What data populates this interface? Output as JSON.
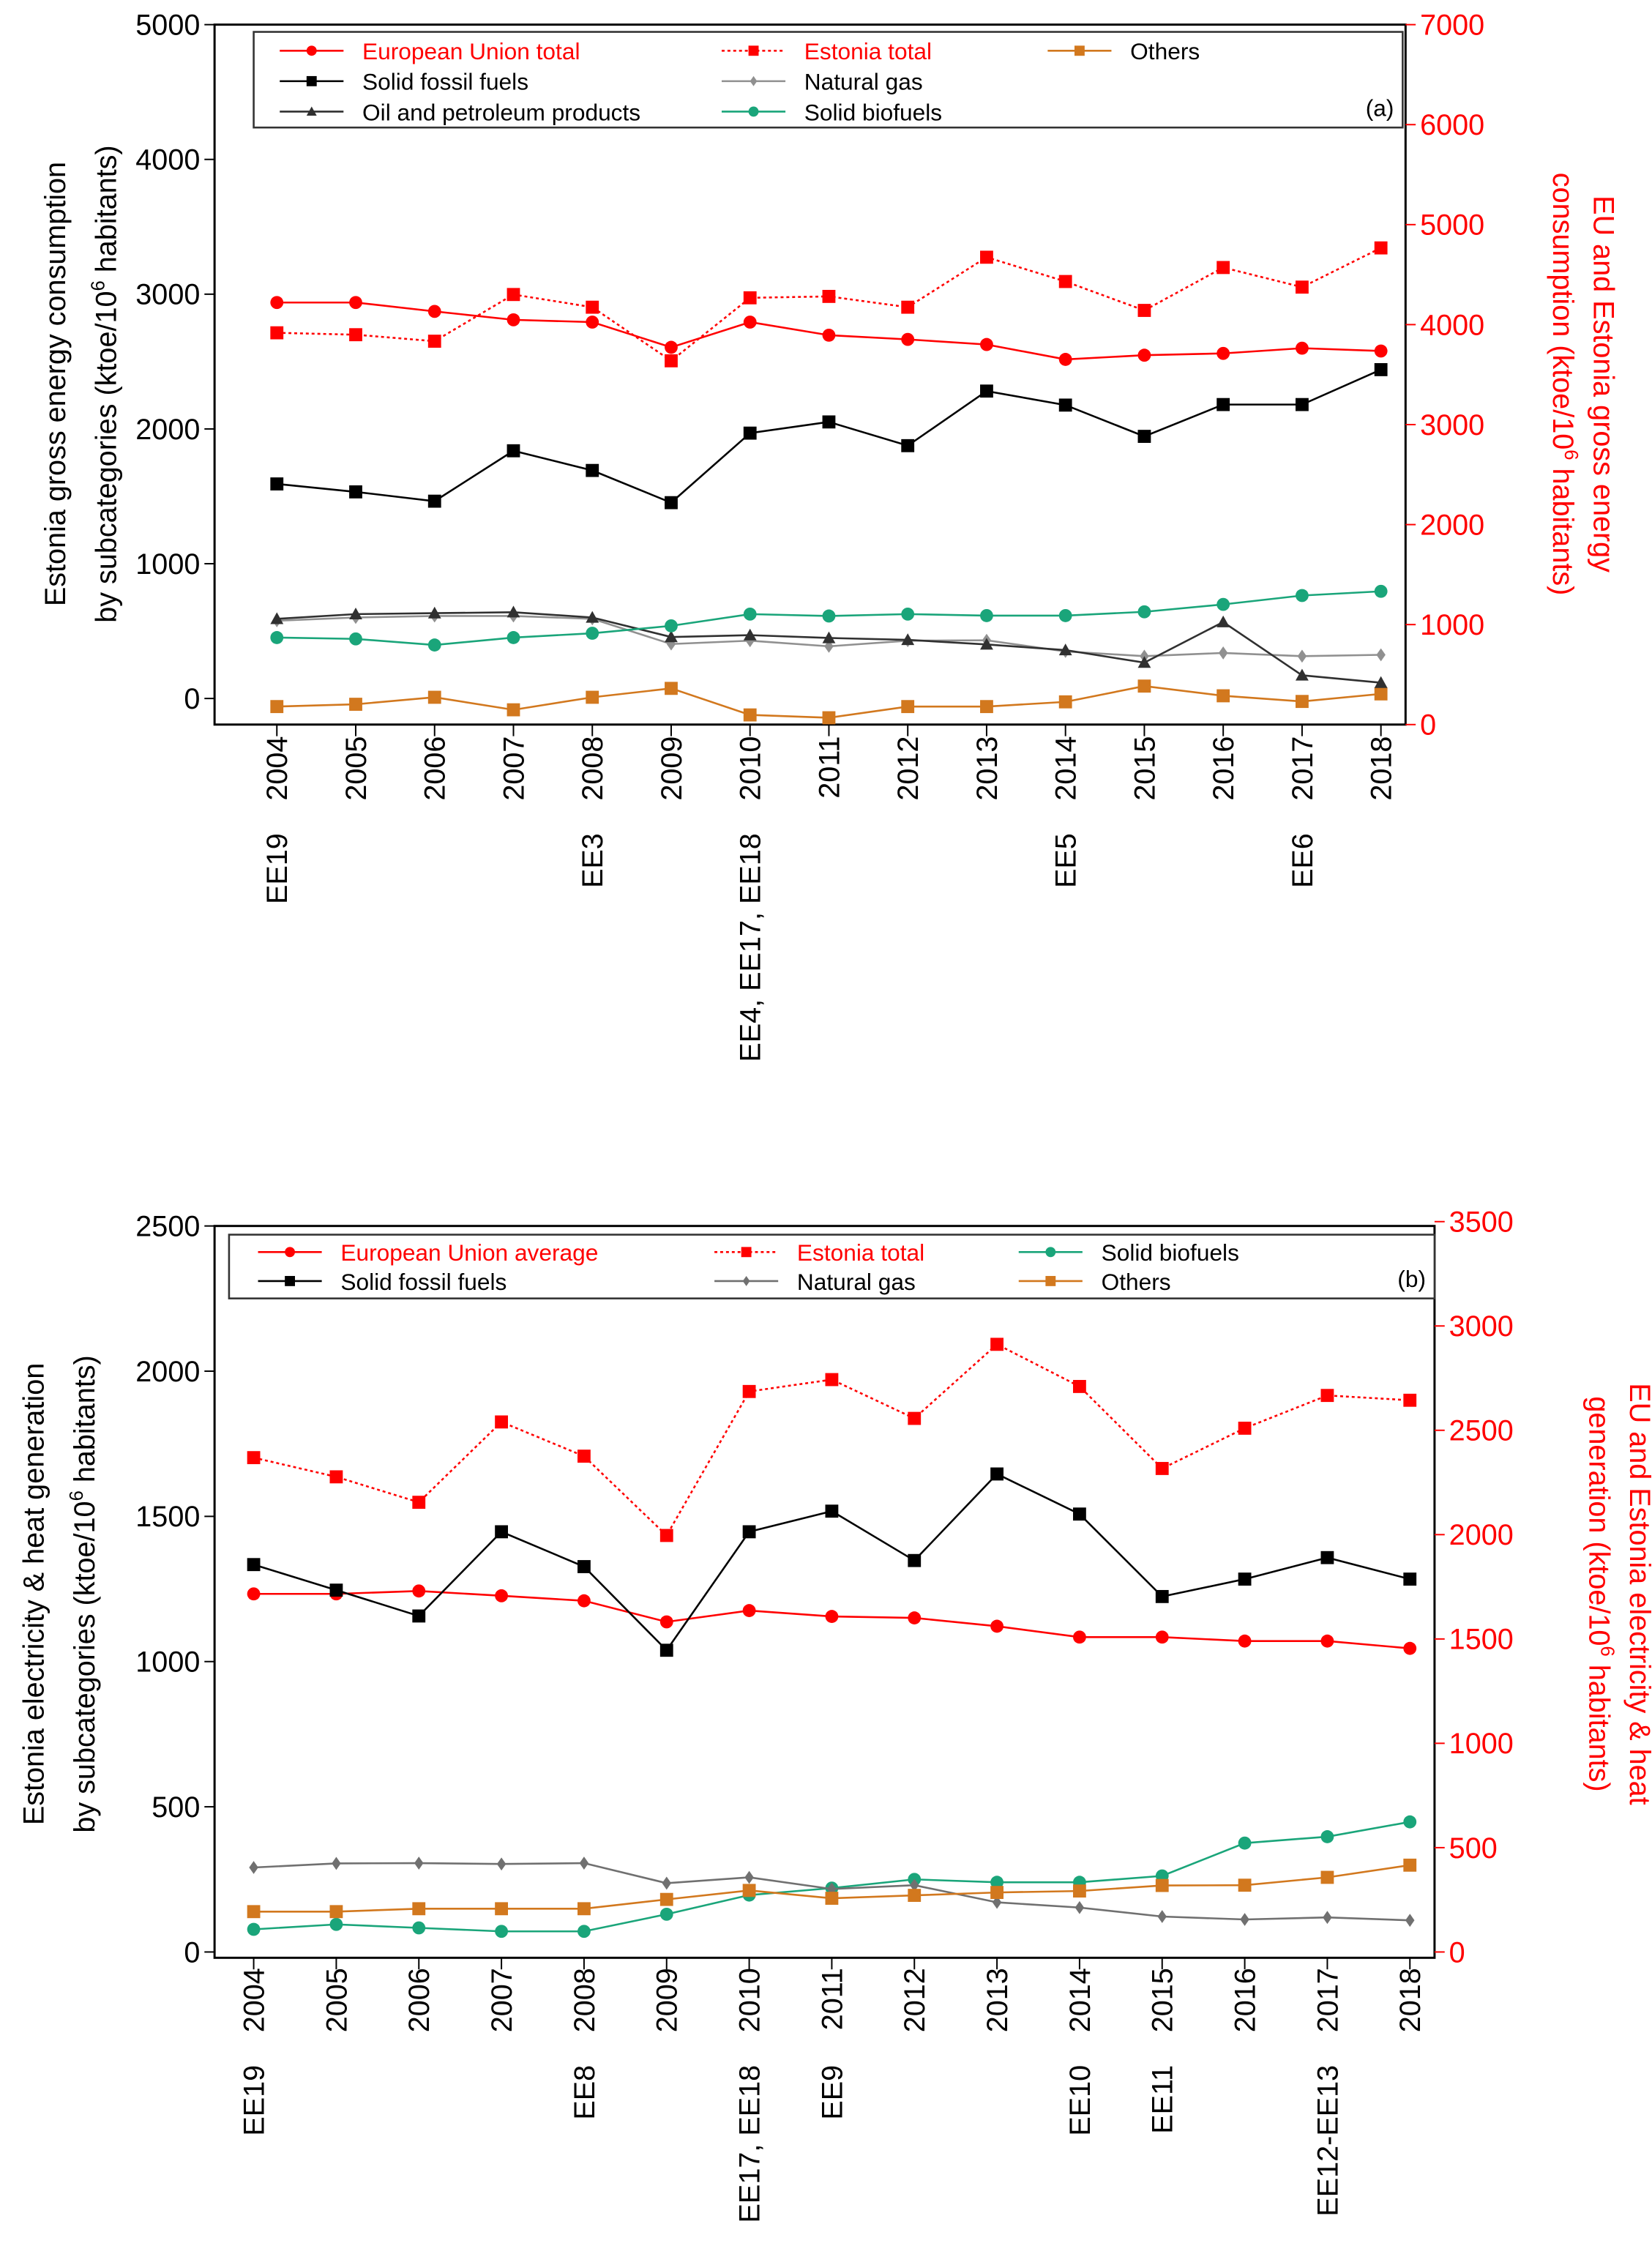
{
  "colors": {
    "eu": "#ff0000",
    "estonia": "#ff0000",
    "solid_fossil": "#000000",
    "natural_gas": "#808080",
    "oil": "#303030",
    "biofuels": "#1aa57a",
    "others": "#d2781e"
  },
  "chart_data": [
    {
      "type": "line",
      "panel_label": "(a)",
      "x": [
        2004,
        2005,
        2006,
        2007,
        2008,
        2009,
        2010,
        2011,
        2012,
        2013,
        2014,
        2015,
        2016,
        2017,
        2018
      ],
      "ylabel": [
        "Estonia gross energy consumption",
        "by subcategories (ktoe/10",
        "6",
        " habitants)"
      ],
      "ylabel2": [
        "EU and Estonia gross energy",
        "consumption (ktoe/10",
        "6",
        " habitants)"
      ],
      "ylim": [
        -200,
        5000
      ],
      "ylim2": [
        0,
        7000
      ],
      "yticks": [
        0,
        1000,
        2000,
        3000,
        4000,
        5000
      ],
      "yticks2": [
        0,
        1000,
        2000,
        3000,
        4000,
        5000,
        6000,
        7000
      ],
      "annotations": [
        {
          "year": 2004,
          "text": "EE19"
        },
        {
          "year": 2008,
          "text": "EE3"
        },
        {
          "year": 2010,
          "text": "EE4, EE17, EE18"
        },
        {
          "year": 2014,
          "text": "EE5"
        },
        {
          "year": 2017,
          "text": "EE6"
        }
      ],
      "series": [
        {
          "name": "European Union total",
          "axis": "right",
          "color": "#ff0000",
          "marker": "circle",
          "dash": false,
          "red_label": true,
          "values": [
            4221,
            4221,
            4132,
            4048,
            4025,
            3773,
            4025,
            3894,
            3852,
            3801,
            3652,
            3694,
            3712,
            3764,
            3736
          ]
        },
        {
          "name": "Estonia total",
          "axis": "right",
          "color": "#ff0000",
          "marker": "square",
          "dash": true,
          "red_label": true,
          "values": [
            3918,
            3899,
            3834,
            4301,
            4174,
            3638,
            4268,
            4282,
            4174,
            4674,
            4431,
            4142,
            4571,
            4375,
            4767
          ]
        },
        {
          "name": "Others",
          "axis": "left",
          "color": "#d2781e",
          "marker": "square",
          "dash": false,
          "values": [
            -60,
            -43,
            9,
            -84,
            9,
            75,
            -122,
            -143,
            -60,
            -60,
            -25,
            92,
            20,
            -22,
            34
          ]
        },
        {
          "name": "Solid fossil fuels",
          "axis": "left",
          "color": "#000000",
          "marker": "square",
          "dash": false,
          "values": [
            1592,
            1533,
            1464,
            1838,
            1692,
            1453,
            1969,
            2052,
            1876,
            2281,
            2177,
            1945,
            2181,
            2181,
            2440
          ]
        },
        {
          "name": "Natural gas",
          "axis": "left",
          "color": "#909090",
          "marker": "diamond",
          "dash": false,
          "values": [
            577,
            601,
            612,
            612,
            591,
            404,
            429,
            387,
            429,
            432,
            349,
            314,
            338,
            314,
            324
          ]
        },
        {
          "name": "Oil and petroleum products",
          "axis": "left",
          "color": "#303030",
          "marker": "triangle",
          "dash": false,
          "values": [
            591,
            626,
            633,
            640,
            601,
            456,
            470,
            449,
            435,
            401,
            359,
            266,
            567,
            172,
            117
          ]
        },
        {
          "name": "Solid biofuels",
          "axis": "left",
          "color": "#1aa57a",
          "marker": "circle",
          "dash": false,
          "values": [
            452,
            442,
            397,
            452,
            484,
            539,
            626,
            612,
            626,
            615,
            615,
            643,
            698,
            764,
            795
          ]
        }
      ]
    },
    {
      "type": "line",
      "panel_label": "(b)",
      "x": [
        2004,
        2005,
        2006,
        2007,
        2008,
        2009,
        2010,
        2011,
        2012,
        2013,
        2014,
        2015,
        2016,
        2017,
        2018
      ],
      "ylabel": [
        "Estonia electricity & heat generation",
        "by subcategories (ktoe/10",
        "6",
        " habitants)"
      ],
      "ylabel2": [
        "EU and Estonia electricity & heat",
        "generation (ktoe/10",
        "6",
        " habitants)"
      ],
      "ylim": [
        0,
        2500
      ],
      "ylim2": [
        0,
        3500
      ],
      "yticks": [
        0,
        500,
        1000,
        1500,
        2000,
        2500
      ],
      "yticks2": [
        0,
        500,
        1000,
        1500,
        2000,
        2500,
        3000,
        3500
      ],
      "annotations": [
        {
          "year": 2004,
          "text": "EE19"
        },
        {
          "year": 2008,
          "text": "EE8"
        },
        {
          "year": 2010,
          "text": "EE17, EE18"
        },
        {
          "year": 2011,
          "text": "EE9"
        },
        {
          "year": 2014,
          "text": "EE10"
        },
        {
          "year": 2015,
          "text": "EE11"
        },
        {
          "year": 2017,
          "text": "EE12-EE13"
        }
      ],
      "series": [
        {
          "name": "European Union average",
          "axis": "right",
          "color": "#ff0000",
          "marker": "circle",
          "dash": false,
          "red_label": true,
          "values": [
            1716,
            1716,
            1730,
            1707,
            1683,
            1582,
            1636,
            1608,
            1601,
            1561,
            1509,
            1509,
            1490,
            1490,
            1455
          ]
        },
        {
          "name": "Estonia total",
          "axis": "right",
          "color": "#ff0000",
          "marker": "square",
          "dash": true,
          "red_label": true,
          "values": [
            2369,
            2277,
            2155,
            2540,
            2376,
            1996,
            2686,
            2743,
            2557,
            2912,
            2710,
            2317,
            2510,
            2667,
            2644
          ]
        },
        {
          "name": "Solid biofuels",
          "axis": "left",
          "color": "#1aa57a",
          "marker": "circle",
          "dash": false,
          "values": [
            78,
            95,
            83,
            71,
            71,
            130,
            196,
            220,
            250,
            240,
            240,
            262,
            375,
            397,
            448
          ]
        },
        {
          "name": "Solid fossil fuels",
          "axis": "left",
          "color": "#000000",
          "marker": "square",
          "dash": false,
          "values": [
            1334,
            1246,
            1157,
            1447,
            1327,
            1039,
            1447,
            1518,
            1348,
            1646,
            1508,
            1224,
            1284,
            1358,
            1284
          ]
        },
        {
          "name": "Natural gas",
          "axis": "left",
          "color": "#707070",
          "marker": "diamond",
          "dash": false,
          "values": [
            291,
            305,
            306,
            303,
            306,
            237,
            257,
            217,
            230,
            171,
            153,
            122,
            112,
            119,
            109
          ]
        },
        {
          "name": "Others",
          "axis": "left",
          "color": "#d2781e",
          "marker": "square",
          "dash": false,
          "values": [
            139,
            139,
            149,
            149,
            149,
            181,
            212,
            185,
            195,
            205,
            210,
            229,
            230,
            257,
            299
          ]
        }
      ]
    }
  ]
}
